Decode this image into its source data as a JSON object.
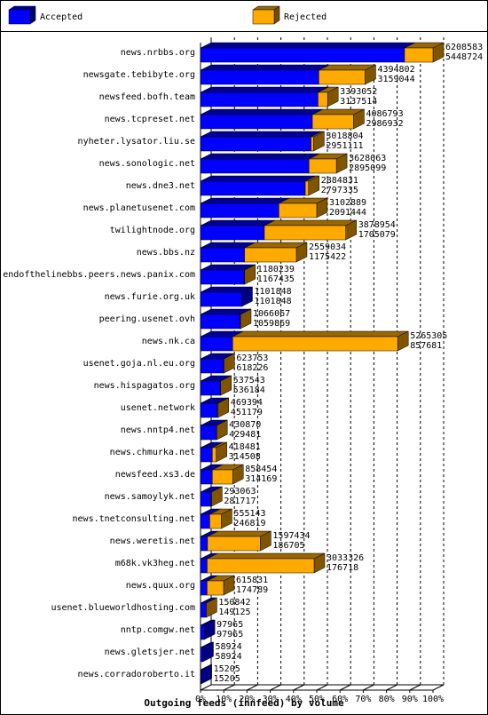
{
  "chart_data": {
    "type": "bar3d-horizontal",
    "title": "Outgoing feeds (innfeed) by volume",
    "categories": [
      "news.nrbbs.org",
      "newsgate.tebibyte.org",
      "newsfeed.bofh.team",
      "news.tcpreset.net",
      "nyheter.lysator.liu.se",
      "news.sonologic.net",
      "news.dne3.net",
      "news.planetusenet.com",
      "twilightnode.org",
      "news.bbs.nz",
      "endofthelinebbs.peers.news.panix.com",
      "news.furie.org.uk",
      "peering.usenet.ovh",
      "news.nk.ca",
      "usenet.goja.nl.eu.org",
      "news.hispagatos.org",
      "usenet.network",
      "news.nntp4.net",
      "news.chmurka.net",
      "newsfeed.xs3.de",
      "news.samoylyk.net",
      "news.tnetconsulting.net",
      "news.weretis.net",
      "m68k.vk3heg.net",
      "news.quux.org",
      "usenet.blueworldhosting.com",
      "nntp.comgw.net",
      "news.gletsjer.net",
      "news.corradoroberto.it"
    ],
    "totals": [
      6208583,
      4394802,
      3393052,
      4086793,
      3018804,
      3628063,
      2884831,
      3102889,
      3878954,
      2559034,
      1180239,
      1101848,
      1066067,
      5265305,
      623753,
      537543,
      469394,
      430870,
      418481,
      858454,
      293063,
      555143,
      1597434,
      3033326,
      615831,
      150842,
      97965,
      58924,
      15205
    ],
    "series": [
      {
        "name": "Accepted",
        "color": "#0000ff",
        "values": [
          5448724,
          3159044,
          3137514,
          2986932,
          2951111,
          2895099,
          2797335,
          2091444,
          1705079,
          1175422,
          1167435,
          1101848,
          1059869,
          857681,
          618226,
          536184,
          451179,
          429481,
          314508,
          314169,
          281717,
          246819,
          186705,
          176718,
          174789,
          149125,
          97965,
          58924,
          15205
        ]
      },
      {
        "name": "Rejected",
        "color": "#ffaa00"
      }
    ],
    "xlim": [
      0,
      6208583
    ],
    "xticks": [
      {
        "value": 0,
        "label": "0%"
      },
      {
        "value": 620858.3,
        "label": "10%"
      },
      {
        "value": 1241716.6,
        "label": "20%"
      },
      {
        "value": 1862574.9,
        "label": "30%"
      },
      {
        "value": 2483433.2,
        "label": "40%"
      },
      {
        "value": 3104291.5,
        "label": "50%"
      },
      {
        "value": 3725149.8,
        "label": "60%"
      },
      {
        "value": 4346008.1,
        "label": "70%"
      },
      {
        "value": 4966866.4,
        "label": "80%"
      },
      {
        "value": 5587724.7,
        "label": "90%"
      },
      {
        "value": 6208583,
        "label": "100%"
      }
    ],
    "grid": true
  }
}
